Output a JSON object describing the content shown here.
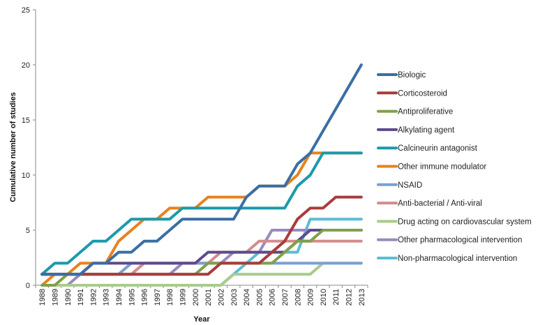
{
  "chart_data": {
    "type": "line",
    "title": "",
    "xlabel": "Year",
    "ylabel": "Cumulative number of studies",
    "ylim": [
      0,
      25
    ],
    "yticks": [
      0,
      5,
      10,
      15,
      20,
      25
    ],
    "grid": false,
    "legend_position": "right",
    "x": [
      "1988",
      "1989",
      "1990",
      "1991",
      "1992",
      "1993",
      "1994",
      "1995",
      "1996",
      "1997",
      "1998",
      "1999",
      "2000",
      "2001",
      "2002",
      "2003",
      "2004",
      "2005",
      "2006",
      "2007",
      "2008",
      "2009",
      "2010",
      "2011",
      "2012",
      "2013"
    ],
    "series": [
      {
        "name": "Biologic",
        "color": "#3a6ea5",
        "values": [
          1,
          1,
          1,
          1,
          2,
          2,
          3,
          3,
          4,
          4,
          5,
          6,
          6,
          6,
          6,
          6,
          8,
          9,
          9,
          9,
          11,
          12,
          14,
          16,
          18,
          20
        ]
      },
      {
        "name": "Corticosteroid",
        "color": "#a83c3c",
        "values": [
          1,
          1,
          1,
          1,
          1,
          1,
          1,
          1,
          1,
          1,
          1,
          1,
          1,
          1,
          2,
          2,
          2,
          2,
          3,
          4,
          6,
          7,
          7,
          8,
          8,
          8
        ]
      },
      {
        "name": "Antiproliferative",
        "color": "#7fa04a",
        "values": [
          0,
          0,
          1,
          1,
          1,
          1,
          1,
          1,
          1,
          1,
          1,
          1,
          1,
          2,
          2,
          2,
          2,
          2,
          2,
          3,
          4,
          4,
          5,
          5,
          5,
          5
        ]
      },
      {
        "name": "Alkylating agent",
        "color": "#5e4a8a",
        "values": [
          1,
          1,
          1,
          1,
          2,
          2,
          2,
          2,
          2,
          2,
          2,
          2,
          2,
          3,
          3,
          3,
          3,
          3,
          3,
          3,
          4,
          5,
          5,
          5,
          5,
          5
        ]
      },
      {
        "name": "Calcineurin antagonist",
        "color": "#1b9aaa",
        "values": [
          1,
          2,
          2,
          3,
          4,
          4,
          5,
          6,
          6,
          6,
          6,
          7,
          7,
          7,
          7,
          7,
          7,
          7,
          7,
          7,
          9,
          10,
          12,
          12,
          12,
          12
        ]
      },
      {
        "name": "Other immune modulator",
        "color": "#e8821e",
        "values": [
          0,
          1,
          1,
          2,
          2,
          2,
          4,
          5,
          6,
          6,
          7,
          7,
          7,
          8,
          8,
          8,
          8,
          9,
          9,
          9,
          10,
          12,
          12,
          12,
          12,
          12
        ]
      },
      {
        "name": "NSAID",
        "color": "#7b9fd4",
        "values": [
          1,
          1,
          1,
          1,
          1,
          1,
          1,
          2,
          2,
          2,
          2,
          2,
          2,
          2,
          2,
          2,
          2,
          2,
          2,
          2,
          2,
          2,
          2,
          2,
          2,
          2
        ]
      },
      {
        "name": "Anti-bacterial / Anti-viral",
        "color": "#d38c8c",
        "values": [
          1,
          1,
          1,
          1,
          1,
          1,
          1,
          1,
          2,
          2,
          2,
          2,
          2,
          2,
          3,
          3,
          3,
          4,
          4,
          4,
          4,
          4,
          4,
          4,
          4,
          4
        ]
      },
      {
        "name": "Drug acting on cardiovascular system",
        "color": "#a8cc8c",
        "values": [
          0,
          0,
          0,
          0,
          0,
          0,
          0,
          0,
          0,
          0,
          0,
          0,
          0,
          0,
          0,
          1,
          1,
          1,
          1,
          1,
          1,
          1,
          2,
          2,
          2,
          2
        ]
      },
      {
        "name": "Other pharmacological intervention",
        "color": "#9a89bf",
        "values": [
          0,
          0,
          0,
          1,
          1,
          1,
          1,
          1,
          1,
          1,
          1,
          2,
          2,
          2,
          2,
          3,
          3,
          3,
          5,
          5,
          5,
          5,
          5,
          5,
          5,
          5
        ]
      },
      {
        "name": "Non-pharmacological intervention",
        "color": "#5bbdd3",
        "values": [
          0,
          0,
          0,
          0,
          0,
          0,
          0,
          0,
          0,
          0,
          0,
          0,
          0,
          0,
          0,
          1,
          2,
          3,
          3,
          3,
          3,
          6,
          6,
          6,
          6,
          6
        ]
      }
    ]
  }
}
